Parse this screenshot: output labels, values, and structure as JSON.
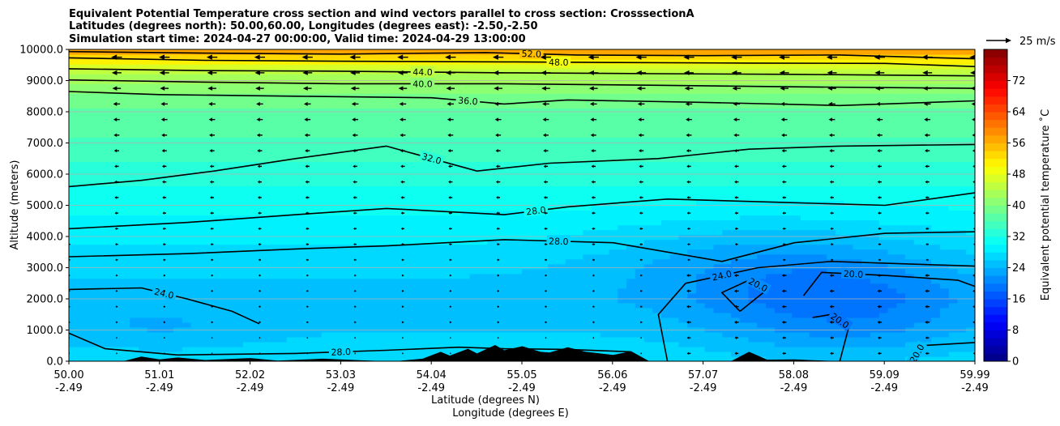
{
  "chart_data": {
    "type": "heatmap",
    "title_lines": [
      "Equivalent Potential Temperature cross section and wind vectors parallel to cross section: CrosssectionA",
      "Latitudes (degrees north): 50.00,60.00, Longitudes (degrees east): -2.50,-2.50",
      "Simulation start time: 2024-04-27 00:00:00, Valid time: 2024-04-29 13:00:00"
    ],
    "ylabel": "Altitude (meters)",
    "xlabel_lines": [
      "Latitude (degrees N)",
      "Longitude (degrees E)"
    ],
    "x_tick_labels": [
      [
        "50.00",
        "-2.49"
      ],
      [
        "51.01",
        "-2.49"
      ],
      [
        "52.02",
        "-2.49"
      ],
      [
        "53.03",
        "-2.49"
      ],
      [
        "54.04",
        "-2.49"
      ],
      [
        "55.05",
        "-2.49"
      ],
      [
        "56.06",
        "-2.49"
      ],
      [
        "57.07",
        "-2.49"
      ],
      [
        "58.08",
        "-2.49"
      ],
      [
        "59.09",
        "-2.49"
      ],
      [
        "59.99",
        "-2.49"
      ]
    ],
    "x_range": [
      50.0,
      59.99
    ],
    "y_tick_values": [
      0,
      1000,
      2000,
      3000,
      4000,
      5000,
      6000,
      7000,
      8000,
      9000,
      10000
    ],
    "y_tick_labels": [
      "0.0",
      "1000.0",
      "2000.0",
      "3000.0",
      "4000.0",
      "5000.0",
      "6000.0",
      "7000.0",
      "8000.0",
      "9000.0",
      "10000.0"
    ],
    "y_range": [
      0,
      10000
    ],
    "grid": "horizontal",
    "colorbar": {
      "label": "Equivalent potential temperature ˚C",
      "range": [
        0,
        80
      ],
      "ticks": [
        0,
        8,
        16,
        24,
        32,
        40,
        48,
        56,
        64,
        72
      ],
      "colormap": "jet"
    },
    "wind_reference": {
      "label": "25 m/s",
      "speed": 25
    },
    "wind_direction": "southward",
    "field_levels": [
      {
        "y": 0,
        "theta": 28
      },
      {
        "y": 1000,
        "theta": 26
      },
      {
        "y": 2000,
        "theta": 25
      },
      {
        "y": 3000,
        "theta": 26.5
      },
      {
        "y": 4000,
        "theta": 28.5
      },
      {
        "y": 5000,
        "theta": 30.5
      },
      {
        "y": 6000,
        "theta": 33
      },
      {
        "y": 7000,
        "theta": 35.5
      },
      {
        "y": 8000,
        "theta": 37.5
      },
      {
        "y": 8800,
        "theta": 41
      },
      {
        "y": 9300,
        "theta": 45
      },
      {
        "y": 9700,
        "theta": 52
      },
      {
        "y": 10000,
        "theta": 60
      }
    ],
    "cold_anomalies": [
      {
        "x": 58.5,
        "y": 1900,
        "theta_drop": 6,
        "x_radius": 1.5,
        "y_radius": 1900
      },
      {
        "x": 57.3,
        "y": 3300,
        "theta_drop": 3,
        "x_radius": 1.6,
        "y_radius": 1400
      },
      {
        "x": 51.0,
        "y": 1000,
        "theta_drop": 2,
        "x_radius": 1.3,
        "y_radius": 900
      }
    ],
    "contours": [
      {
        "value": 52,
        "label": "52.0",
        "points": [
          [
            50.0,
            9930
          ],
          [
            51.5,
            9880
          ],
          [
            53,
            9850
          ],
          [
            54.6,
            9900
          ],
          [
            55.6,
            9820
          ],
          [
            57,
            9800
          ],
          [
            58.5,
            9820
          ],
          [
            59.99,
            9700
          ]
        ]
      },
      {
        "value": 48,
        "label": "48.0",
        "points": [
          [
            50.0,
            9730
          ],
          [
            51.5,
            9650
          ],
          [
            53,
            9620
          ],
          [
            54.8,
            9600
          ],
          [
            56,
            9580
          ],
          [
            57.5,
            9560
          ],
          [
            59,
            9550
          ],
          [
            59.99,
            9450
          ]
        ]
      },
      {
        "value": 44,
        "label": "44.0",
        "points": [
          [
            50.0,
            9380
          ],
          [
            51.5,
            9320
          ],
          [
            53,
            9300
          ],
          [
            54.8,
            9250
          ],
          [
            56.5,
            9220
          ],
          [
            58,
            9200
          ],
          [
            59.99,
            9150
          ]
        ]
      },
      {
        "value": 40,
        "label": "40.0",
        "points": [
          [
            50.0,
            9020
          ],
          [
            51.5,
            8950
          ],
          [
            53,
            8900
          ],
          [
            54.8,
            8900
          ],
          [
            56.5,
            8850
          ],
          [
            58,
            8800
          ],
          [
            59.99,
            8750
          ]
        ]
      },
      {
        "value": 36,
        "label": "36.0",
        "points": [
          [
            50.0,
            8650
          ],
          [
            51,
            8550
          ],
          [
            52.5,
            8500
          ],
          [
            54,
            8450
          ],
          [
            54.8,
            8250
          ],
          [
            55.5,
            8380
          ],
          [
            57,
            8300
          ],
          [
            58.5,
            8200
          ],
          [
            59.99,
            8350
          ]
        ]
      },
      {
        "value": 32,
        "label": "32.0",
        "points": [
          [
            50.0,
            5600
          ],
          [
            50.8,
            5800
          ],
          [
            51.6,
            6100
          ],
          [
            52.5,
            6500
          ],
          [
            53.5,
            6900
          ],
          [
            54.5,
            6100
          ],
          [
            55.3,
            6350
          ],
          [
            56.5,
            6500
          ],
          [
            57.5,
            6800
          ],
          [
            58.5,
            6900
          ],
          [
            59.99,
            6950
          ]
        ]
      },
      {
        "value": 28,
        "label": "28.0",
        "points": [
          [
            50.0,
            4250
          ],
          [
            51.3,
            4450
          ],
          [
            52.5,
            4700
          ],
          [
            53.5,
            4900
          ],
          [
            54.8,
            4700
          ],
          [
            55.5,
            4950
          ],
          [
            56.6,
            5200
          ],
          [
            57.8,
            5100
          ],
          [
            59,
            5000
          ],
          [
            59.99,
            5400
          ]
        ]
      },
      {
        "value": 28,
        "label": "28.0",
        "points": [
          [
            50.0,
            3350
          ],
          [
            51.3,
            3450
          ],
          [
            52.5,
            3600
          ],
          [
            53.5,
            3700
          ],
          [
            54.8,
            3900
          ],
          [
            56,
            3800
          ],
          [
            56.7,
            3450
          ],
          [
            57.2,
            3200
          ],
          [
            58,
            3800
          ],
          [
            59,
            4100
          ],
          [
            59.99,
            4150
          ]
        ]
      },
      {
        "value": 24,
        "label": "24.0",
        "points": [
          [
            50.0,
            2300
          ],
          [
            50.8,
            2350
          ],
          [
            51.3,
            2000
          ],
          [
            51.8,
            1600
          ],
          [
            52.1,
            1200
          ]
        ]
      },
      {
        "value": 24,
        "label": "24.0",
        "points": [
          [
            56.6,
            0
          ],
          [
            56.5,
            1500
          ],
          [
            56.8,
            2500
          ],
          [
            57.6,
            3000
          ],
          [
            58.4,
            3200
          ],
          [
            59.99,
            3050
          ]
        ]
      },
      {
        "value": 20,
        "label": "20.0",
        "points": [
          [
            57.4,
            1600
          ],
          [
            57.7,
            2300
          ],
          [
            57.5,
            2600
          ],
          [
            57.2,
            2200
          ],
          [
            57.4,
            1600
          ]
        ]
      },
      {
        "value": 20,
        "label": "20.0",
        "points": [
          [
            58.1,
            2100
          ],
          [
            58.3,
            2850
          ],
          [
            59,
            2750
          ],
          [
            59.8,
            2600
          ],
          [
            59.99,
            2400
          ]
        ]
      },
      {
        "value": 20,
        "label": "20.0",
        "points": [
          [
            58.5,
            0
          ],
          [
            58.6,
            1100
          ],
          [
            58.4,
            1500
          ],
          [
            58.2,
            1400
          ]
        ]
      },
      {
        "value": 20,
        "label": "20.0",
        "points": [
          [
            59.3,
            0
          ],
          [
            59.4,
            500
          ],
          [
            59.99,
            600
          ]
        ]
      },
      {
        "value": 28,
        "label": "28.0",
        "points": [
          [
            50.0,
            900
          ],
          [
            50.4,
            400
          ],
          [
            51.2,
            200
          ],
          [
            52.5,
            250
          ],
          [
            53.5,
            350
          ],
          [
            54.3,
            450
          ],
          [
            54.8,
            400
          ],
          [
            55.5,
            380
          ],
          [
            56.2,
            300
          ]
        ]
      }
    ],
    "terrain": [
      [
        50.0,
        0
      ],
      [
        50.6,
        0
      ],
      [
        50.8,
        150
      ],
      [
        51.0,
        60
      ],
      [
        51.2,
        120
      ],
      [
        51.5,
        40
      ],
      [
        52.0,
        100
      ],
      [
        52.3,
        20
      ],
      [
        52.8,
        80
      ],
      [
        53.2,
        30
      ],
      [
        53.5,
        0
      ],
      [
        53.6,
        0
      ],
      [
        53.9,
        80
      ],
      [
        54.1,
        300
      ],
      [
        54.2,
        180
      ],
      [
        54.4,
        400
      ],
      [
        54.5,
        250
      ],
      [
        54.7,
        520
      ],
      [
        54.8,
        350
      ],
      [
        55.0,
        480
      ],
      [
        55.2,
        300
      ],
      [
        55.3,
        280
      ],
      [
        55.5,
        450
      ],
      [
        55.7,
        300
      ],
      [
        56.0,
        200
      ],
      [
        56.2,
        320
      ],
      [
        56.4,
        0
      ],
      [
        57.3,
        0
      ],
      [
        57.5,
        300
      ],
      [
        57.7,
        50
      ],
      [
        58.0,
        60
      ],
      [
        58.2,
        30
      ],
      [
        58.5,
        0
      ],
      [
        59.99,
        0
      ]
    ]
  }
}
